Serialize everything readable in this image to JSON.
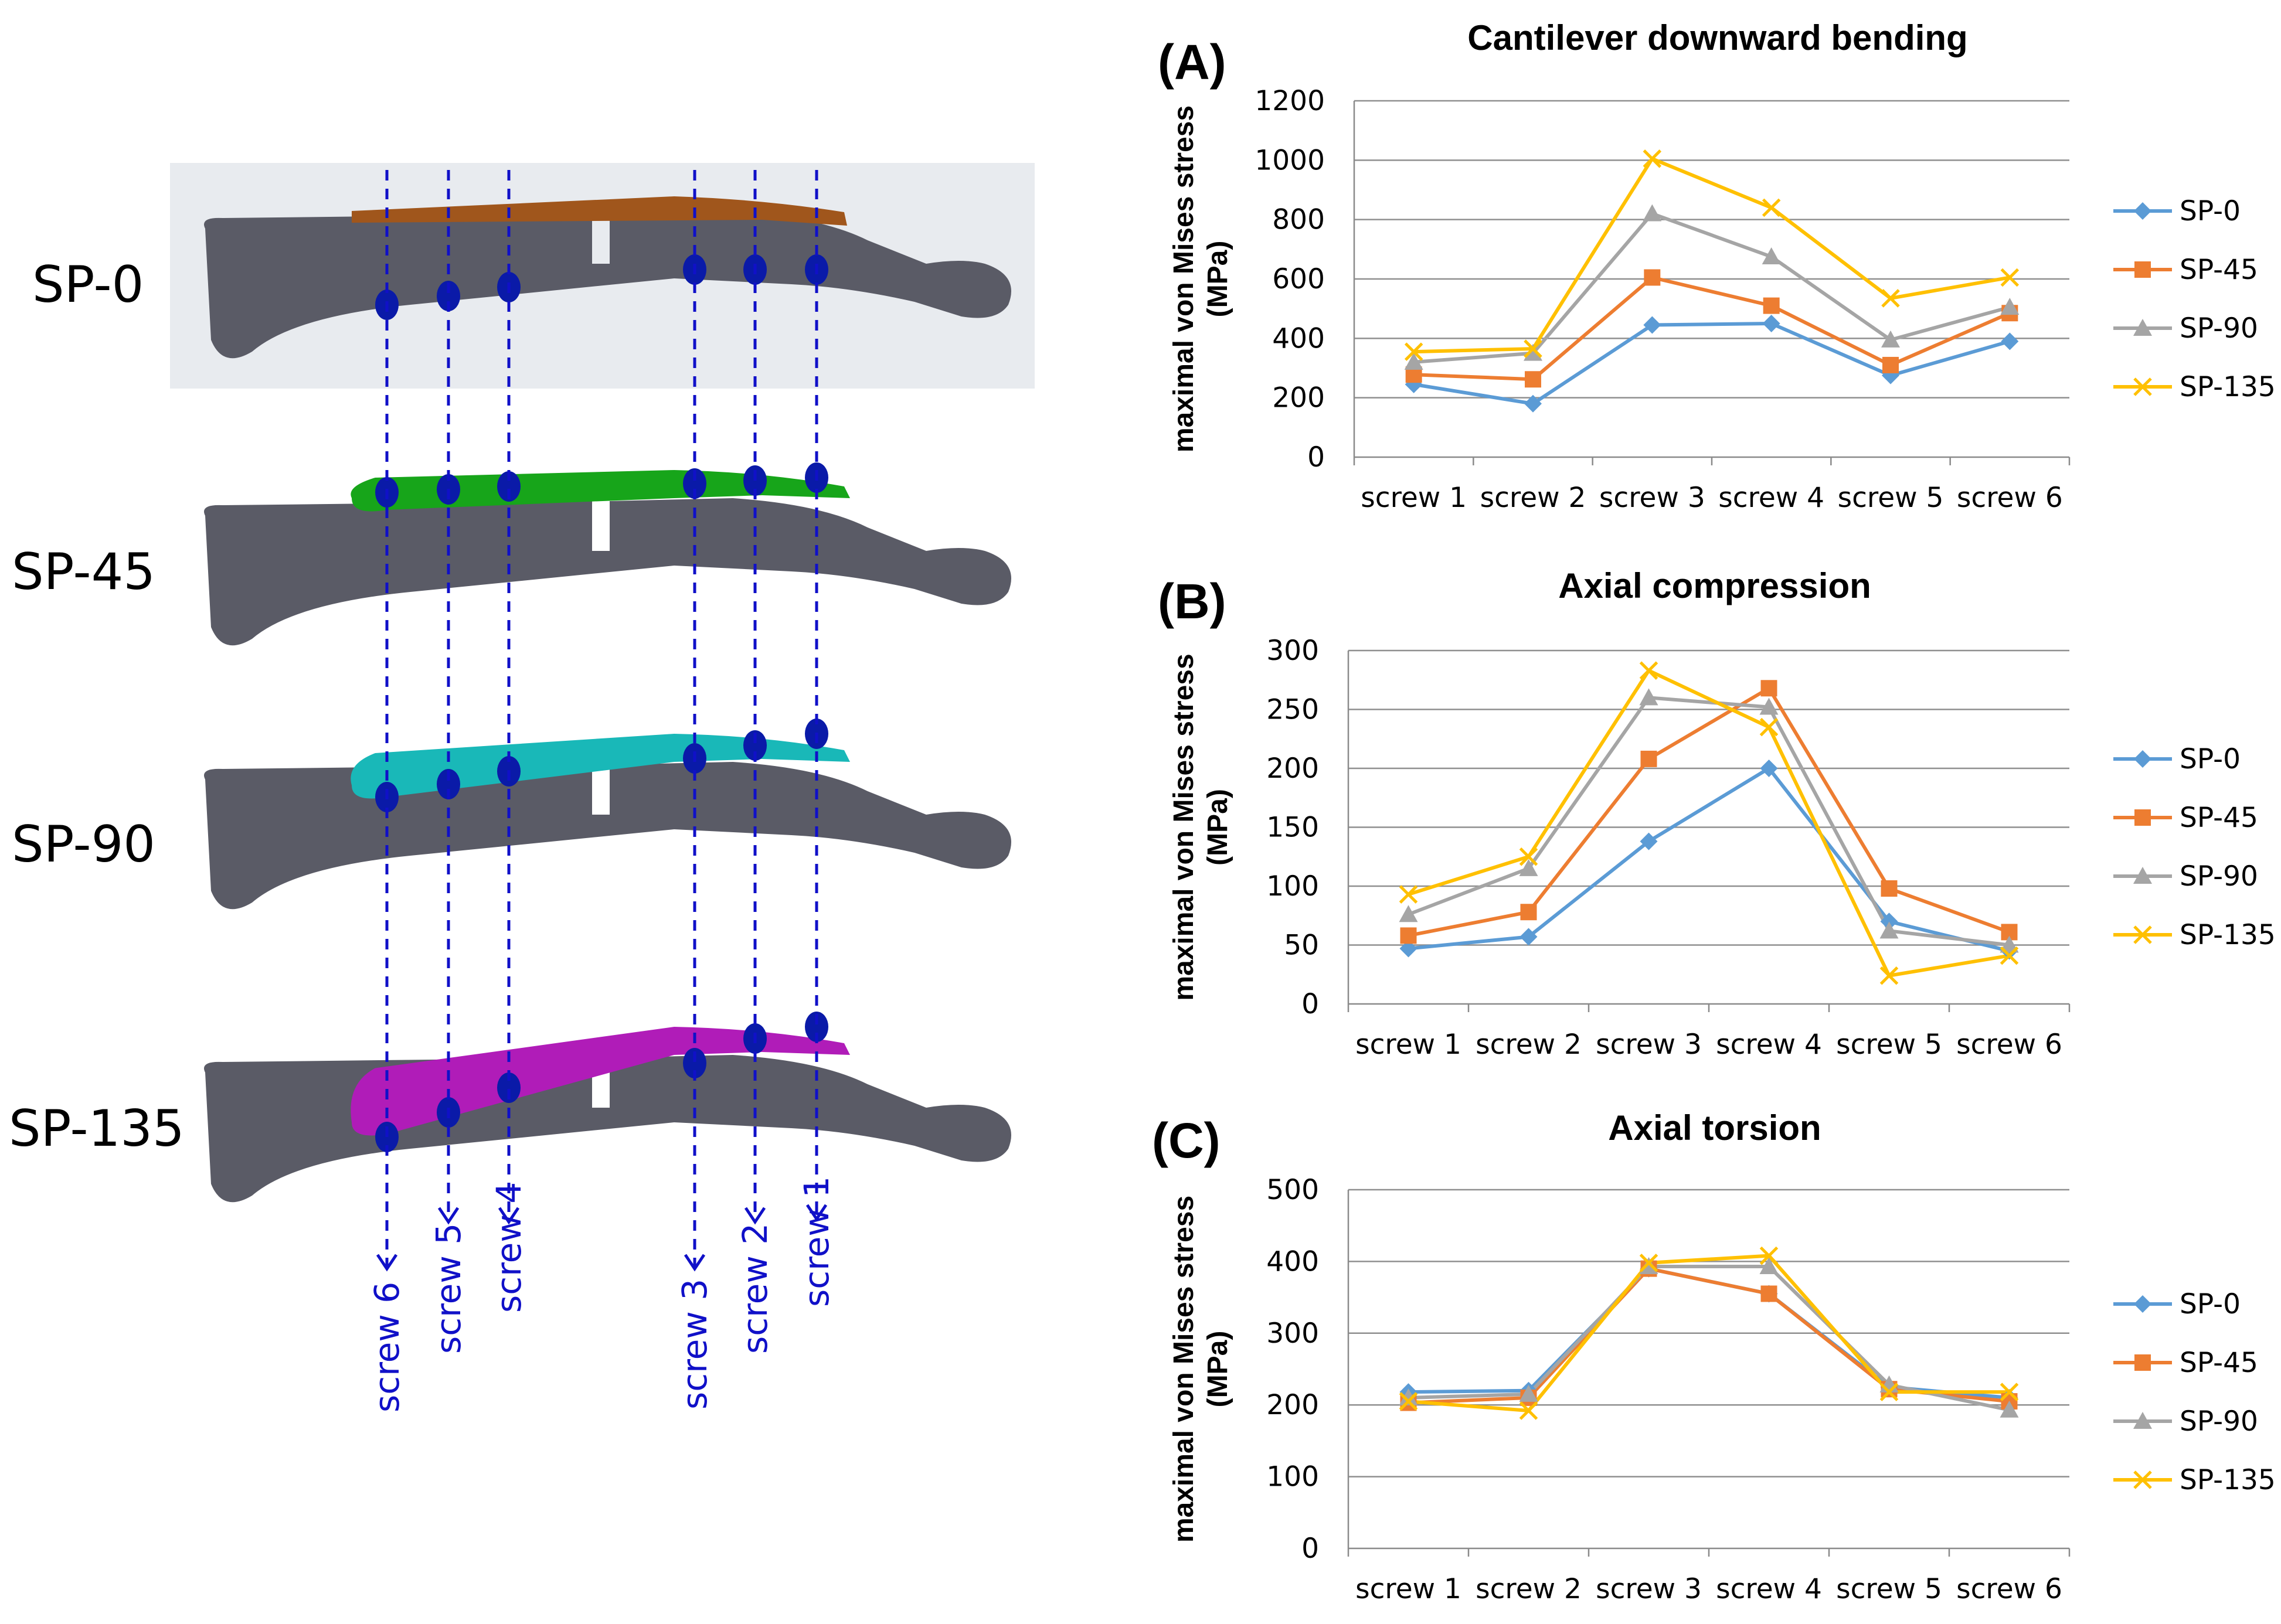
{
  "models": {
    "labels": [
      "SP-0",
      "SP-45",
      "SP-90",
      "SP-135"
    ],
    "plate_colors": [
      "#a0561c",
      "#17a51a",
      "#19b8b8",
      "#b01cb8"
    ],
    "bone_color": "#5a5b66",
    "screw_color": "#0a1aa8"
  },
  "screws": {
    "labels": [
      "screw 6",
      "screw 5",
      "screw 4",
      "screw 3",
      "screw 2",
      "screw 1"
    ],
    "arrow_color": "#1010c8"
  },
  "legend": [
    "SP-0",
    "SP-45",
    "SP-90",
    "SP-135"
  ],
  "series_colors": [
    "#5b9bd5",
    "#ed7d31",
    "#a5a5a5",
    "#ffc000"
  ],
  "chart_data": [
    {
      "type": "line",
      "panel": "(A)",
      "title": "Cantilever downward bending",
      "ylabel": "maximal von Mises stress (MPa)",
      "ylabel_lines": [
        "maximal von Mises stress",
        "(MPa)"
      ],
      "xlabel": "",
      "categories": [
        "screw 1",
        "screw 2",
        "screw 3",
        "screw 4",
        "screw 5",
        "screw 6"
      ],
      "ylim": [
        0,
        1200
      ],
      "yticks": [
        0,
        200,
        400,
        600,
        800,
        1000,
        1200
      ],
      "grid": true,
      "legend_position": "right",
      "series": [
        {
          "name": "SP-0",
          "values": [
            245,
            180,
            445,
            450,
            275,
            390
          ]
        },
        {
          "name": "SP-45",
          "values": [
            278,
            262,
            605,
            510,
            310,
            485
          ]
        },
        {
          "name": "SP-90",
          "values": [
            320,
            350,
            820,
            675,
            395,
            505
          ]
        },
        {
          "name": "SP-135",
          "values": [
            355,
            365,
            1005,
            840,
            535,
            605
          ]
        }
      ]
    },
    {
      "type": "line",
      "panel": "(B)",
      "title": "Axial compression",
      "ylabel": "maximal von Mises stress (MPa)",
      "ylabel_lines": [
        "maximal von Mises stress",
        "(MPa)"
      ],
      "xlabel": "",
      "categories": [
        "screw 1",
        "screw 2",
        "screw 3",
        "screw 4",
        "screw 5",
        "screw 6"
      ],
      "ylim": [
        0,
        300
      ],
      "yticks": [
        0,
        50,
        100,
        150,
        200,
        250,
        300
      ],
      "grid": true,
      "legend_position": "right",
      "series": [
        {
          "name": "SP-0",
          "values": [
            47,
            57,
            138,
            200,
            70,
            45
          ]
        },
        {
          "name": "SP-45",
          "values": [
            58,
            78,
            208,
            268,
            98,
            61
          ]
        },
        {
          "name": "SP-90",
          "values": [
            76,
            115,
            260,
            252,
            62,
            50
          ]
        },
        {
          "name": "SP-135",
          "values": [
            93,
            125,
            283,
            235,
            24,
            41
          ]
        }
      ]
    },
    {
      "type": "line",
      "panel": "(C)",
      "title": "Axial torsion",
      "ylabel": "maximal von Mises stress (MPa)",
      "ylabel_lines": [
        "maximal von Mises stress",
        "(MPa)"
      ],
      "xlabel": "",
      "categories": [
        "screw 1",
        "screw 2",
        "screw 3",
        "screw 4",
        "screw 5",
        "screw 6"
      ],
      "ylim": [
        0,
        500
      ],
      "yticks": [
        0,
        100,
        200,
        300,
        400,
        500
      ],
      "grid": true,
      "legend_position": "right",
      "series": [
        {
          "name": "SP-0",
          "values": [
            218,
            220,
            390,
            355,
            225,
            210
          ]
        },
        {
          "name": "SP-45",
          "values": [
            203,
            210,
            390,
            355,
            222,
            205
          ]
        },
        {
          "name": "SP-90",
          "values": [
            210,
            215,
            393,
            393,
            228,
            193
          ]
        },
        {
          "name": "SP-135",
          "values": [
            205,
            192,
            398,
            408,
            218,
            218
          ]
        }
      ]
    }
  ]
}
